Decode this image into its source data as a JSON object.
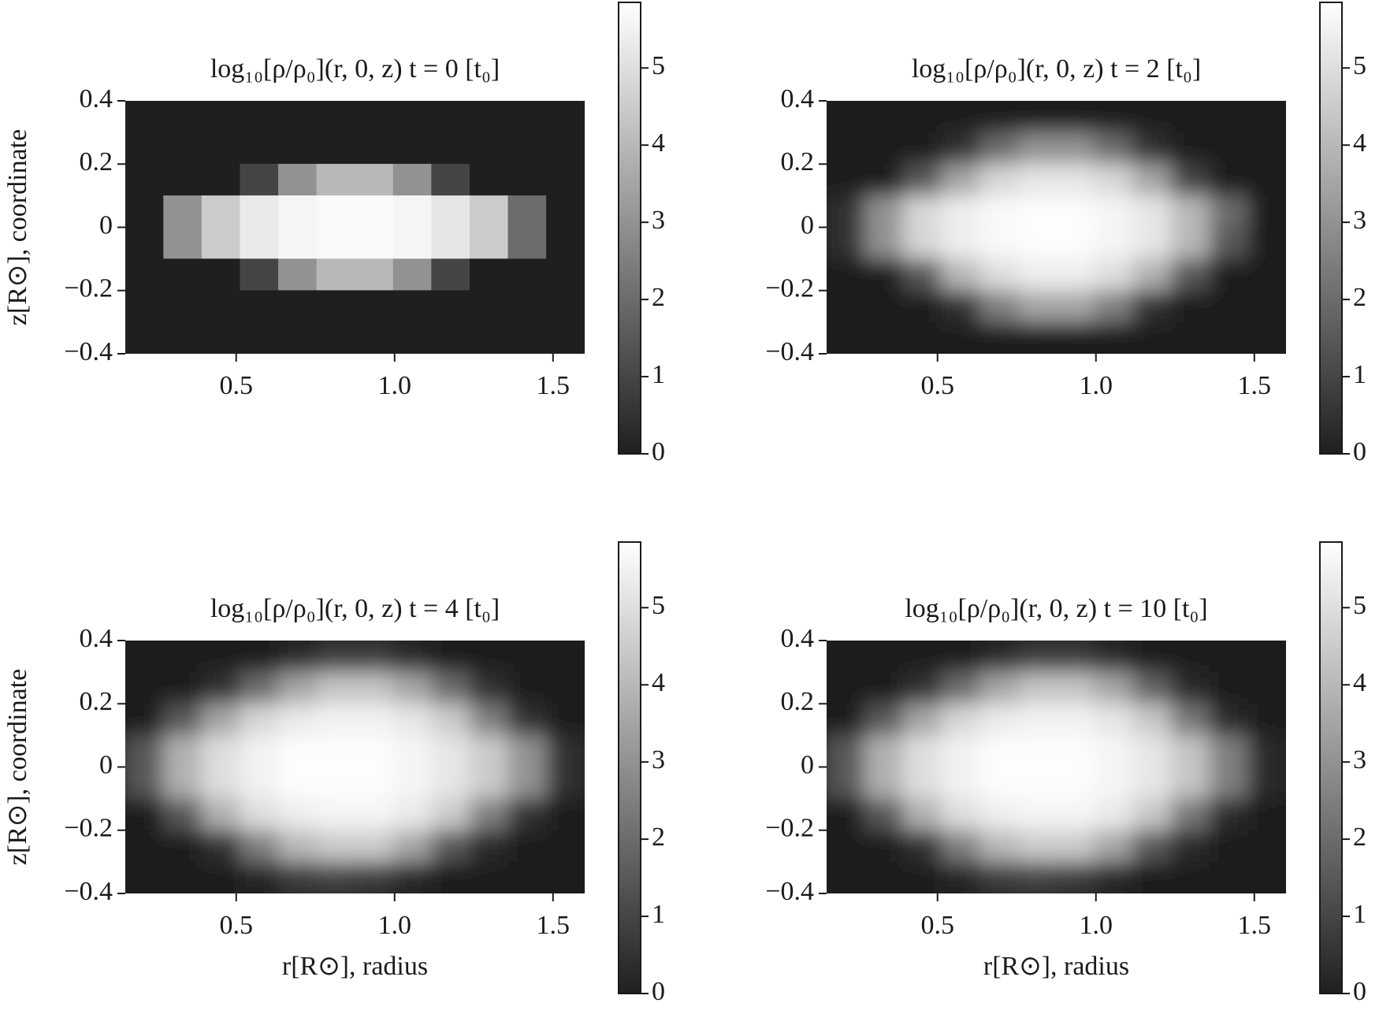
{
  "chart_data": [
    {
      "type": "heatmap",
      "title": "log₁₀[ρ/ρ₀](r, 0, z)  t = 0 [t₀]",
      "ylabel": "z[R⊙], coordinate",
      "xlim": [
        0.15,
        1.6
      ],
      "ylim": [
        -0.4,
        0.4
      ],
      "xticks": [
        0.5,
        {
          "value": 1,
          "label": "1.0"
        },
        1.5
      ],
      "yticks": [
        {
          "value": -0.4,
          "label": "−0.4"
        },
        {
          "value": -0.2,
          "label": "−0.2"
        },
        0,
        0.2,
        0.4
      ],
      "clim": [
        0,
        5.85
      ],
      "cticks": [
        0,
        1,
        2,
        3,
        4,
        5
      ],
      "colormap": [
        "#1f1f1f",
        "#ffffff"
      ],
      "interpolation": "nearest",
      "z": [
        [
          0,
          0,
          0,
          0,
          0,
          0,
          0,
          0,
          0,
          0,
          0,
          0
        ],
        [
          0,
          0,
          0,
          0,
          0,
          0,
          0,
          0,
          0,
          0,
          0,
          0
        ],
        [
          0,
          0,
          0,
          1,
          3,
          4,
          4,
          3,
          1,
          0,
          0,
          0
        ],
        [
          0,
          3,
          4.5,
          5.3,
          5.6,
          5.7,
          5.7,
          5.6,
          5.2,
          4.5,
          2,
          0
        ],
        [
          0,
          3,
          4.5,
          5.3,
          5.6,
          5.7,
          5.7,
          5.6,
          5.2,
          4.5,
          2,
          0
        ],
        [
          0,
          0,
          0,
          1,
          3,
          4,
          4,
          3,
          1,
          0,
          0,
          0
        ],
        [
          0,
          0,
          0,
          0,
          0,
          0,
          0,
          0,
          0,
          0,
          0,
          0
        ],
        [
          0,
          0,
          0,
          0,
          0,
          0,
          0,
          0,
          0,
          0,
          0,
          0
        ]
      ]
    },
    {
      "type": "heatmap",
      "title": "log₁₀[ρ/ρ₀](r, 0, z)  t = 2 [t₀]",
      "xlim": [
        0.15,
        1.6
      ],
      "ylim": [
        -0.4,
        0.4
      ],
      "xticks": [
        0.5,
        {
          "value": 1,
          "label": "1.0"
        },
        1.5
      ],
      "yticks": [
        {
          "value": -0.4,
          "label": "−0.4"
        },
        {
          "value": -0.2,
          "label": "−0.2"
        },
        0,
        0.2,
        0.4
      ],
      "clim": [
        0,
        5.85
      ],
      "cticks": [
        0,
        1,
        2,
        3,
        4,
        5
      ],
      "colormap": [
        "#1f1f1f",
        "#ffffff"
      ],
      "interpolation": "bilinear",
      "z": [
        [
          0,
          0,
          0,
          0,
          0,
          0,
          0,
          0,
          0,
          0,
          0,
          0
        ],
        [
          0,
          0,
          0,
          0.5,
          2,
          3,
          3,
          2,
          0.5,
          0,
          0,
          0
        ],
        [
          0,
          0,
          1.5,
          3.5,
          4.8,
          5.2,
          5.2,
          4.8,
          3.5,
          1,
          0,
          0
        ],
        [
          0.5,
          3,
          4.8,
          5.4,
          5.7,
          5.8,
          5.8,
          5.6,
          5.2,
          4,
          2,
          0
        ],
        [
          0.5,
          3,
          4.8,
          5.4,
          5.7,
          5.8,
          5.8,
          5.6,
          5.2,
          4,
          1.5,
          0
        ],
        [
          0,
          0,
          1.5,
          4,
          5,
          5.4,
          5.4,
          5,
          3.8,
          1.5,
          0,
          0
        ],
        [
          0,
          0,
          0,
          0.5,
          2.5,
          3.5,
          3.5,
          2.5,
          0.5,
          0,
          0,
          0
        ],
        [
          0,
          0,
          0,
          0,
          0,
          0,
          0,
          0,
          0,
          0,
          0,
          0
        ]
      ]
    },
    {
      "type": "heatmap",
      "title": "log₁₀[ρ/ρ₀](r, 0, z)  t = 4 [t₀]",
      "ylabel": "z[R⊙], coordinate",
      "xlabel": "r[R⊙], radius",
      "xlim": [
        0.15,
        1.6
      ],
      "ylim": [
        -0.4,
        0.4
      ],
      "xticks": [
        0.5,
        {
          "value": 1,
          "label": "1.0"
        },
        1.5
      ],
      "yticks": [
        {
          "value": -0.4,
          "label": "−0.4"
        },
        {
          "value": -0.2,
          "label": "−0.2"
        },
        0,
        0.2,
        0.4
      ],
      "clim": [
        0,
        5.85
      ],
      "cticks": [
        0,
        1,
        2,
        3,
        4,
        5
      ],
      "colormap": [
        "#1f1f1f",
        "#ffffff"
      ],
      "interpolation": "bilinear",
      "z": [
        [
          0,
          0,
          0,
          0,
          0.3,
          0.8,
          0.8,
          0.3,
          0,
          0,
          0,
          0
        ],
        [
          0,
          0,
          0.5,
          2,
          3.5,
          4.3,
          4.3,
          3.5,
          2,
          0.5,
          0,
          0
        ],
        [
          0,
          1.5,
          3.5,
          4.8,
          5.3,
          5.5,
          5.5,
          5.2,
          4.5,
          2.5,
          0.5,
          0
        ],
        [
          1.5,
          3.8,
          5,
          5.5,
          5.8,
          5.8,
          5.8,
          5.6,
          5.2,
          4.5,
          3,
          0.5
        ],
        [
          1.5,
          3.8,
          5,
          5.5,
          5.8,
          5.8,
          5.8,
          5.6,
          5.2,
          4.5,
          3,
          0.5
        ],
        [
          0,
          1.5,
          3.8,
          5,
          5.4,
          5.6,
          5.6,
          5.3,
          4.5,
          2.5,
          0.5,
          0
        ],
        [
          0,
          0,
          0.5,
          2.5,
          4,
          4.5,
          4.5,
          3.5,
          1.5,
          0.3,
          0,
          0
        ],
        [
          0,
          0,
          0,
          0.2,
          0.8,
          1,
          0.8,
          0.3,
          0,
          0,
          0,
          0
        ]
      ]
    },
    {
      "type": "heatmap",
      "title": "log₁₀[ρ/ρ₀](r, 0, z)  t = 10 [t₀]",
      "xlabel": "r[R⊙], radius",
      "xlim": [
        0.15,
        1.6
      ],
      "ylim": [
        -0.4,
        0.4
      ],
      "xticks": [
        0.5,
        {
          "value": 1,
          "label": "1.0"
        },
        1.5
      ],
      "yticks": [
        {
          "value": -0.4,
          "label": "−0.4"
        },
        {
          "value": -0.2,
          "label": "−0.2"
        },
        0,
        0.2,
        0.4
      ],
      "clim": [
        0,
        5.85
      ],
      "cticks": [
        0,
        1,
        2,
        3,
        4,
        5
      ],
      "colormap": [
        "#1f1f1f",
        "#ffffff"
      ],
      "interpolation": "bilinear",
      "z": [
        [
          0,
          0,
          0,
          0,
          0.3,
          0.8,
          0.8,
          0.3,
          0,
          0,
          0,
          0
        ],
        [
          0,
          0,
          0.5,
          2,
          3.5,
          4.3,
          4.3,
          3.5,
          1.8,
          0.3,
          0,
          0
        ],
        [
          0,
          1.5,
          3.5,
          4.8,
          5.3,
          5.5,
          5.5,
          5.2,
          4.4,
          2.3,
          0.3,
          0
        ],
        [
          1.5,
          3.8,
          5,
          5.5,
          5.8,
          5.8,
          5.8,
          5.6,
          5.2,
          4.3,
          2.5,
          0.3
        ],
        [
          1.5,
          3.8,
          5,
          5.5,
          5.8,
          5.8,
          5.8,
          5.6,
          5.2,
          4.3,
          2.5,
          0.3
        ],
        [
          0,
          1.5,
          3.8,
          5,
          5.4,
          5.6,
          5.6,
          5.3,
          4.4,
          2.3,
          0.3,
          0
        ],
        [
          0,
          0,
          0.5,
          2.5,
          4,
          4.5,
          4.5,
          3.5,
          1.5,
          0.3,
          0,
          0
        ],
        [
          0,
          0,
          0,
          0.2,
          0.8,
          1,
          0.8,
          0.3,
          0,
          0,
          0,
          0
        ]
      ]
    }
  ]
}
